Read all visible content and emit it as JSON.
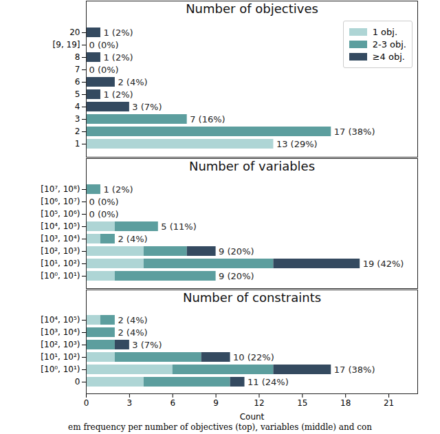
{
  "chart_data": [
    {
      "type": "bar",
      "orientation": "horizontal",
      "stacked": true,
      "title": "Number of objectives",
      "categories": [
        "20",
        "[9, 19]",
        "8",
        "7",
        "6",
        "5",
        "4",
        "3",
        "2",
        "1"
      ],
      "series": [
        {
          "name": "1 obj.",
          "color": "#aed5d5",
          "values": [
            0,
            0,
            0,
            0,
            0,
            0,
            0,
            0,
            0,
            13
          ]
        },
        {
          "name": "2-3 obj.",
          "color": "#5c9e9e",
          "values": [
            0,
            0,
            0,
            0,
            0,
            0,
            0,
            7,
            17,
            0
          ]
        },
        {
          "name": "≥4 obj.",
          "color": "#344a60",
          "values": [
            1,
            0,
            1,
            0,
            2,
            1,
            3,
            0,
            0,
            0
          ]
        }
      ],
      "totals": [
        1,
        0,
        1,
        0,
        2,
        1,
        3,
        7,
        17,
        13
      ],
      "total_labels": [
        "1 (2%)",
        "0 (0%)",
        "1 (2%)",
        "0 (0%)",
        "2 (4%)",
        "1 (2%)",
        "3 (7%)",
        "7 (16%)",
        "17 (38%)",
        "13 (29%)"
      ],
      "xlim": [
        0,
        23
      ],
      "tick_labels": "y",
      "legend": "upper right"
    },
    {
      "type": "bar",
      "orientation": "horizontal",
      "stacked": true,
      "title": "Number of variables",
      "categories": [
        "[10⁷, 10⁸)",
        "[10⁶, 10⁷)",
        "[10⁵, 10⁶)",
        "[10⁴, 10⁵)",
        "[10³, 10⁴)",
        "[10², 10³)",
        "[10¹, 10²)",
        "[10⁰, 10¹)"
      ],
      "series": [
        {
          "name": "1 obj.",
          "color": "#aed5d5",
          "values": [
            0,
            0,
            0,
            2,
            1,
            4,
            4,
            2
          ]
        },
        {
          "name": "2-3 obj.",
          "color": "#5c9e9e",
          "values": [
            1,
            0,
            0,
            3,
            1,
            3,
            9,
            7
          ]
        },
        {
          "name": "≥4 obj.",
          "color": "#344a60",
          "values": [
            0,
            0,
            0,
            0,
            0,
            2,
            6,
            0
          ]
        }
      ],
      "totals": [
        1,
        0,
        0,
        5,
        2,
        9,
        19,
        9
      ],
      "total_labels": [
        "1 (2%)",
        "0 (0%)",
        "0 (0%)",
        "5 (11%)",
        "2 (4%)",
        "9 (20%)",
        "19 (42%)",
        "9 (20%)"
      ],
      "xlim": [
        0,
        23
      ],
      "tick_labels": "y"
    },
    {
      "type": "bar",
      "orientation": "horizontal",
      "stacked": true,
      "title": "Number of constraints",
      "categories": [
        "[10⁴, 10⁵)",
        "[10³, 10⁴)",
        "[10², 10³)",
        "[10¹, 10²)",
        "[10⁰, 10¹)",
        "0"
      ],
      "series": [
        {
          "name": "1 obj.",
          "color": "#aed5d5",
          "values": [
            1,
            0,
            0,
            2,
            6,
            4
          ]
        },
        {
          "name": "2-3 obj.",
          "color": "#5c9e9e",
          "values": [
            1,
            2,
            2,
            6,
            7,
            6
          ]
        },
        {
          "name": "≥4 obj.",
          "color": "#344a60",
          "values": [
            0,
            0,
            1,
            2,
            4,
            1
          ]
        }
      ],
      "totals": [
        2,
        2,
        3,
        10,
        17,
        11
      ],
      "total_labels": [
        "2 (4%)",
        "2 (4%)",
        "3 (7%)",
        "10 (22%)",
        "17 (38%)",
        "11 (24%)"
      ],
      "xlim": [
        0,
        23
      ],
      "xticks": [
        0,
        3,
        6,
        9,
        12,
        15,
        18,
        21
      ],
      "xlabel": "Count"
    }
  ],
  "caption": "em frequency per number of objectives (top), variables (middle) and con"
}
